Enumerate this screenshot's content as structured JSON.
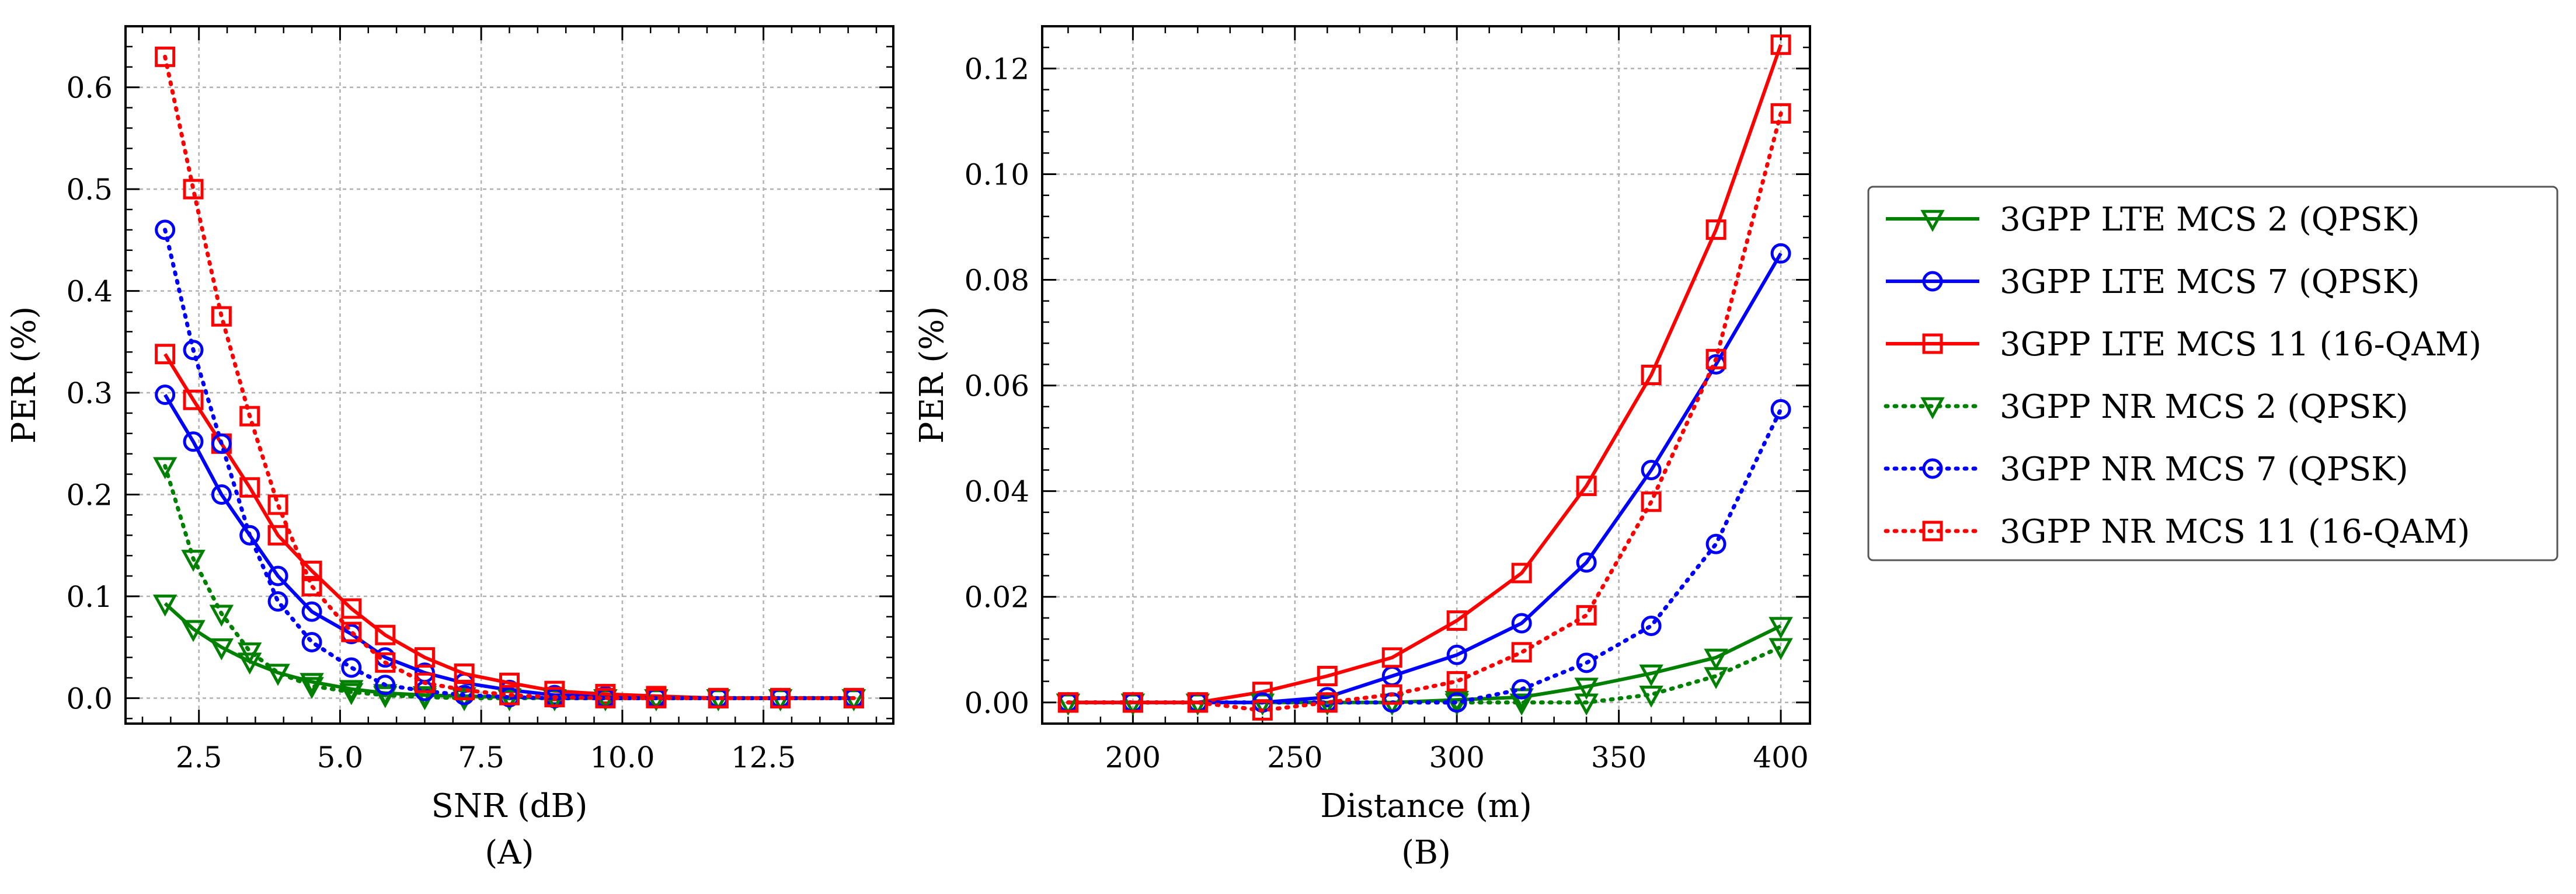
{
  "colors": {
    "lte_mcs2": "#008000",
    "lte_mcs7": "#0000ff",
    "lte_mcs11": "#ff0000",
    "nr_mcs2": "#008000",
    "nr_mcs7": "#0000ff",
    "nr_mcs11": "#ff0000",
    "grid": "#b0b0b0",
    "axis": "#000000"
  },
  "legend": [
    {
      "key": "lte_mcs2",
      "label": "3GPP LTE MCS 2 (QPSK)",
      "marker": "triangle-down",
      "dash": "solid"
    },
    {
      "key": "lte_mcs7",
      "label": "3GPP LTE MCS 7 (QPSK)",
      "marker": "circle",
      "dash": "solid"
    },
    {
      "key": "lte_mcs11",
      "label": "3GPP LTE MCS 11 (16-QAM)",
      "marker": "square",
      "dash": "solid"
    },
    {
      "key": "nr_mcs2",
      "label": "3GPP NR MCS 2 (QPSK)",
      "marker": "triangle-down",
      "dash": "dotted"
    },
    {
      "key": "nr_mcs7",
      "label": "3GPP NR MCS 7 (QPSK)",
      "marker": "circle",
      "dash": "dotted"
    },
    {
      "key": "nr_mcs11",
      "label": "3GPP NR MCS 11 (16-QAM)",
      "marker": "square",
      "dash": "dotted"
    }
  ],
  "chart_data": [
    {
      "id": "A",
      "type": "line",
      "panel_label": "(A)",
      "xlabel": "SNR (dB)",
      "ylabel": "PER (%)",
      "xlim": [
        1.2,
        14.8
      ],
      "ylim": [
        -0.025,
        0.66
      ],
      "xticks": [
        2.5,
        5.0,
        7.5,
        10.0,
        12.5
      ],
      "xtick_labels": [
        "2.5",
        "5.0",
        "7.5",
        "10.0",
        "12.5"
      ],
      "yticks": [
        0.0,
        0.1,
        0.2,
        0.3,
        0.4,
        0.5,
        0.6
      ],
      "ytick_labels": [
        "0.0",
        "0.1",
        "0.2",
        "0.3",
        "0.4",
        "0.5",
        "0.6"
      ],
      "grid": true,
      "series": [
        {
          "key": "lte_mcs2",
          "name": "3GPP LTE MCS 2 (QPSK)",
          "x": [
            1.9,
            2.4,
            2.9,
            3.4,
            3.9,
            4.5,
            5.2,
            5.8,
            6.5,
            7.2,
            8.0,
            8.8,
            9.7,
            10.6,
            11.7,
            12.8,
            14.1
          ],
          "y": [
            0.093,
            0.068,
            0.05,
            0.036,
            0.025,
            0.016,
            0.009,
            0.005,
            0.003,
            0.002,
            0.001,
            0.0,
            0.0,
            0.0,
            0.0,
            0.0,
            0.0
          ]
        },
        {
          "key": "lte_mcs7",
          "name": "3GPP LTE MCS 7 (QPSK)",
          "x": [
            1.9,
            2.4,
            2.9,
            3.4,
            3.9,
            4.5,
            5.2,
            5.8,
            6.5,
            7.2,
            8.0,
            8.8,
            9.7,
            10.6,
            11.7,
            12.8,
            14.1
          ],
          "y": [
            0.298,
            0.252,
            0.2,
            0.16,
            0.12,
            0.085,
            0.063,
            0.04,
            0.025,
            0.015,
            0.008,
            0.003,
            0.002,
            0.001,
            0.0,
            0.0,
            0.0
          ]
        },
        {
          "key": "lte_mcs11",
          "name": "3GPP LTE MCS 11 (16-QAM)",
          "x": [
            1.9,
            2.4,
            2.9,
            3.4,
            3.9,
            4.5,
            5.2,
            5.8,
            6.5,
            7.2,
            8.0,
            8.8,
            9.7,
            10.6,
            11.7,
            12.8,
            14.1
          ],
          "y": [
            0.338,
            0.293,
            0.25,
            0.207,
            0.16,
            0.125,
            0.088,
            0.062,
            0.04,
            0.024,
            0.015,
            0.007,
            0.004,
            0.002,
            0.0,
            0.0,
            0.0
          ]
        },
        {
          "key": "nr_mcs2",
          "name": "3GPP NR MCS 2 (QPSK)",
          "x": [
            1.9,
            2.4,
            2.9,
            3.4,
            3.9,
            4.5,
            5.2,
            5.8,
            6.5,
            7.2,
            8.0,
            8.8,
            9.7,
            10.6,
            11.7,
            12.8,
            14.1
          ],
          "y": [
            0.228,
            0.137,
            0.083,
            0.046,
            0.025,
            0.012,
            0.006,
            0.003,
            0.001,
            0.0,
            0.0,
            0.0,
            0.0,
            0.0,
            0.0,
            0.0,
            0.0
          ]
        },
        {
          "key": "nr_mcs7",
          "name": "3GPP NR MCS 7 (QPSK)",
          "x": [
            1.9,
            2.4,
            2.9,
            3.4,
            3.9,
            4.5,
            5.2,
            5.8,
            6.5,
            7.2,
            8.0,
            8.8,
            9.7,
            10.6,
            11.7,
            12.8,
            14.1
          ],
          "y": [
            0.46,
            0.342,
            0.25,
            0.16,
            0.095,
            0.055,
            0.03,
            0.013,
            0.007,
            0.003,
            0.001,
            0.0,
            0.0,
            0.0,
            0.0,
            0.0,
            0.0
          ]
        },
        {
          "key": "nr_mcs11",
          "name": "3GPP NR MCS 11 (16-QAM)",
          "x": [
            1.9,
            2.4,
            2.9,
            3.4,
            3.9,
            4.5,
            5.2,
            5.8,
            6.5,
            7.2,
            8.0,
            8.8,
            9.7,
            10.6,
            11.7,
            12.8,
            14.1
          ],
          "y": [
            0.63,
            0.5,
            0.375,
            0.277,
            0.19,
            0.11,
            0.065,
            0.035,
            0.015,
            0.008,
            0.003,
            0.001,
            0.0,
            0.0,
            0.0,
            0.0,
            0.0
          ]
        }
      ]
    },
    {
      "id": "B",
      "type": "line",
      "panel_label": "(B)",
      "xlabel": "Distance (m)",
      "ylabel": "PER (%)",
      "xlim": [
        172,
        409
      ],
      "ylim": [
        -0.004,
        0.128
      ],
      "xticks": [
        200,
        250,
        300,
        350,
        400
      ],
      "xtick_labels": [
        "200",
        "250",
        "300",
        "350",
        "400"
      ],
      "yticks": [
        0.0,
        0.02,
        0.04,
        0.06,
        0.08,
        0.1,
        0.12
      ],
      "ytick_labels": [
        "0.00",
        "0.02",
        "0.04",
        "0.06",
        "0.08",
        "0.10",
        "0.12"
      ],
      "grid": true,
      "series": [
        {
          "key": "lte_mcs2",
          "name": "3GPP LTE MCS 2 (QPSK)",
          "x": [
            180,
            200,
            220,
            240,
            260,
            280,
            300,
            320,
            340,
            360,
            380,
            400
          ],
          "y": [
            0.0,
            0.0,
            0.0,
            0.0,
            0.0,
            0.0,
            0.0005,
            0.001,
            0.003,
            0.0055,
            0.0085,
            0.0145
          ]
        },
        {
          "key": "lte_mcs7",
          "name": "3GPP LTE MCS 7 (QPSK)",
          "x": [
            180,
            200,
            220,
            240,
            260,
            280,
            300,
            320,
            340,
            360,
            380,
            400
          ],
          "y": [
            0.0,
            0.0,
            0.0,
            0.0,
            0.001,
            0.005,
            0.009,
            0.015,
            0.0265,
            0.044,
            0.064,
            0.085
          ]
        },
        {
          "key": "lte_mcs11",
          "name": "3GPP LTE MCS 11 (16-QAM)",
          "x": [
            180,
            200,
            220,
            240,
            260,
            280,
            300,
            320,
            340,
            360,
            380,
            400
          ],
          "y": [
            0.0,
            0.0,
            0.0,
            0.002,
            0.005,
            0.0085,
            0.0155,
            0.0245,
            0.041,
            0.062,
            0.0895,
            0.1245
          ]
        },
        {
          "key": "nr_mcs2",
          "name": "3GPP NR MCS 2 (QPSK)",
          "x": [
            180,
            200,
            220,
            240,
            260,
            280,
            300,
            320,
            340,
            360,
            380,
            400
          ],
          "y": [
            0.0,
            0.0,
            0.0,
            0.0,
            0.0,
            0.0,
            0.0,
            0.0,
            0.0,
            0.0015,
            0.005,
            0.0105
          ]
        },
        {
          "key": "nr_mcs7",
          "name": "3GPP NR MCS 7 (QPSK)",
          "x": [
            180,
            200,
            220,
            240,
            260,
            280,
            300,
            320,
            340,
            360,
            380,
            400
          ],
          "y": [
            0.0,
            0.0,
            0.0,
            0.0,
            0.0,
            0.0,
            0.0,
            0.0025,
            0.0075,
            0.0145,
            0.03,
            0.0555
          ]
        },
        {
          "key": "nr_mcs11",
          "name": "3GPP NR MCS 11 (16-QAM)",
          "x": [
            180,
            200,
            220,
            240,
            260,
            280,
            300,
            320,
            340,
            360,
            380,
            400
          ],
          "y": [
            0.0,
            0.0,
            0.0,
            -0.0015,
            0.0,
            0.0015,
            0.004,
            0.0095,
            0.0165,
            0.038,
            0.065,
            0.1115
          ]
        }
      ]
    }
  ]
}
